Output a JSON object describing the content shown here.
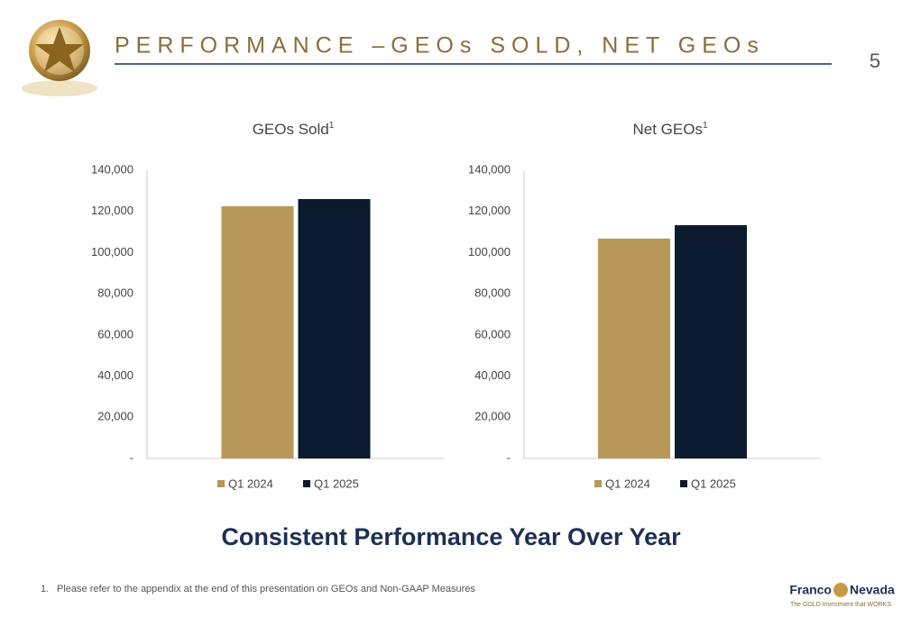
{
  "slide_title": "PERFORMANCE –GEOs SOLD, NET GEOs",
  "page_number": "5",
  "tagline": "Consistent Performance Year Over Year",
  "footnote": {
    "number": "1.",
    "text": "Please refer to the appendix at the end of this presentation on GEOs and Non-GAAP Measures"
  },
  "logo": {
    "name_left": "Franco",
    "name_right": "Nevada",
    "slogan": "The GOLD Investment that WORKS"
  },
  "chart_data": [
    {
      "type": "bar",
      "title": "GEOs Sold",
      "title_superscript": "1",
      "categories": [
        null
      ],
      "series": [
        {
          "name": "Q1 2024",
          "color": "#b8975a",
          "values": [
            122500
          ]
        },
        {
          "name": "Q1 2025",
          "color": "#0c1a2e",
          "values": [
            126000
          ]
        }
      ],
      "ylim": [
        0,
        140000
      ],
      "yticks": [
        {
          "value": 0,
          "label": "-"
        },
        {
          "value": 20000,
          "label": "20,000"
        },
        {
          "value": 40000,
          "label": "40,000"
        },
        {
          "value": 60000,
          "label": "60,000"
        },
        {
          "value": 80000,
          "label": "80,000"
        },
        {
          "value": 100000,
          "label": "100,000"
        },
        {
          "value": 120000,
          "label": "120,000"
        },
        {
          "value": 140000,
          "label": "140,000"
        }
      ],
      "grid": false,
      "legend": "bottom"
    },
    {
      "type": "bar",
      "title": "Net GEOs",
      "title_superscript": "1",
      "categories": [
        null
      ],
      "series": [
        {
          "name": "Q1 2024",
          "color": "#b8975a",
          "values": [
            106800
          ]
        },
        {
          "name": "Q1 2025",
          "color": "#0c1a2e",
          "values": [
            113300
          ]
        }
      ],
      "ylim": [
        0,
        140000
      ],
      "yticks": [
        {
          "value": 0,
          "label": "-"
        },
        {
          "value": 20000,
          "label": "20,000"
        },
        {
          "value": 40000,
          "label": "40,000"
        },
        {
          "value": 60000,
          "label": "60,000"
        },
        {
          "value": 80000,
          "label": "80,000"
        },
        {
          "value": 100000,
          "label": "100,000"
        },
        {
          "value": 120000,
          "label": "120,000"
        },
        {
          "value": 140000,
          "label": "140,000"
        }
      ],
      "grid": false,
      "legend": "bottom"
    }
  ]
}
